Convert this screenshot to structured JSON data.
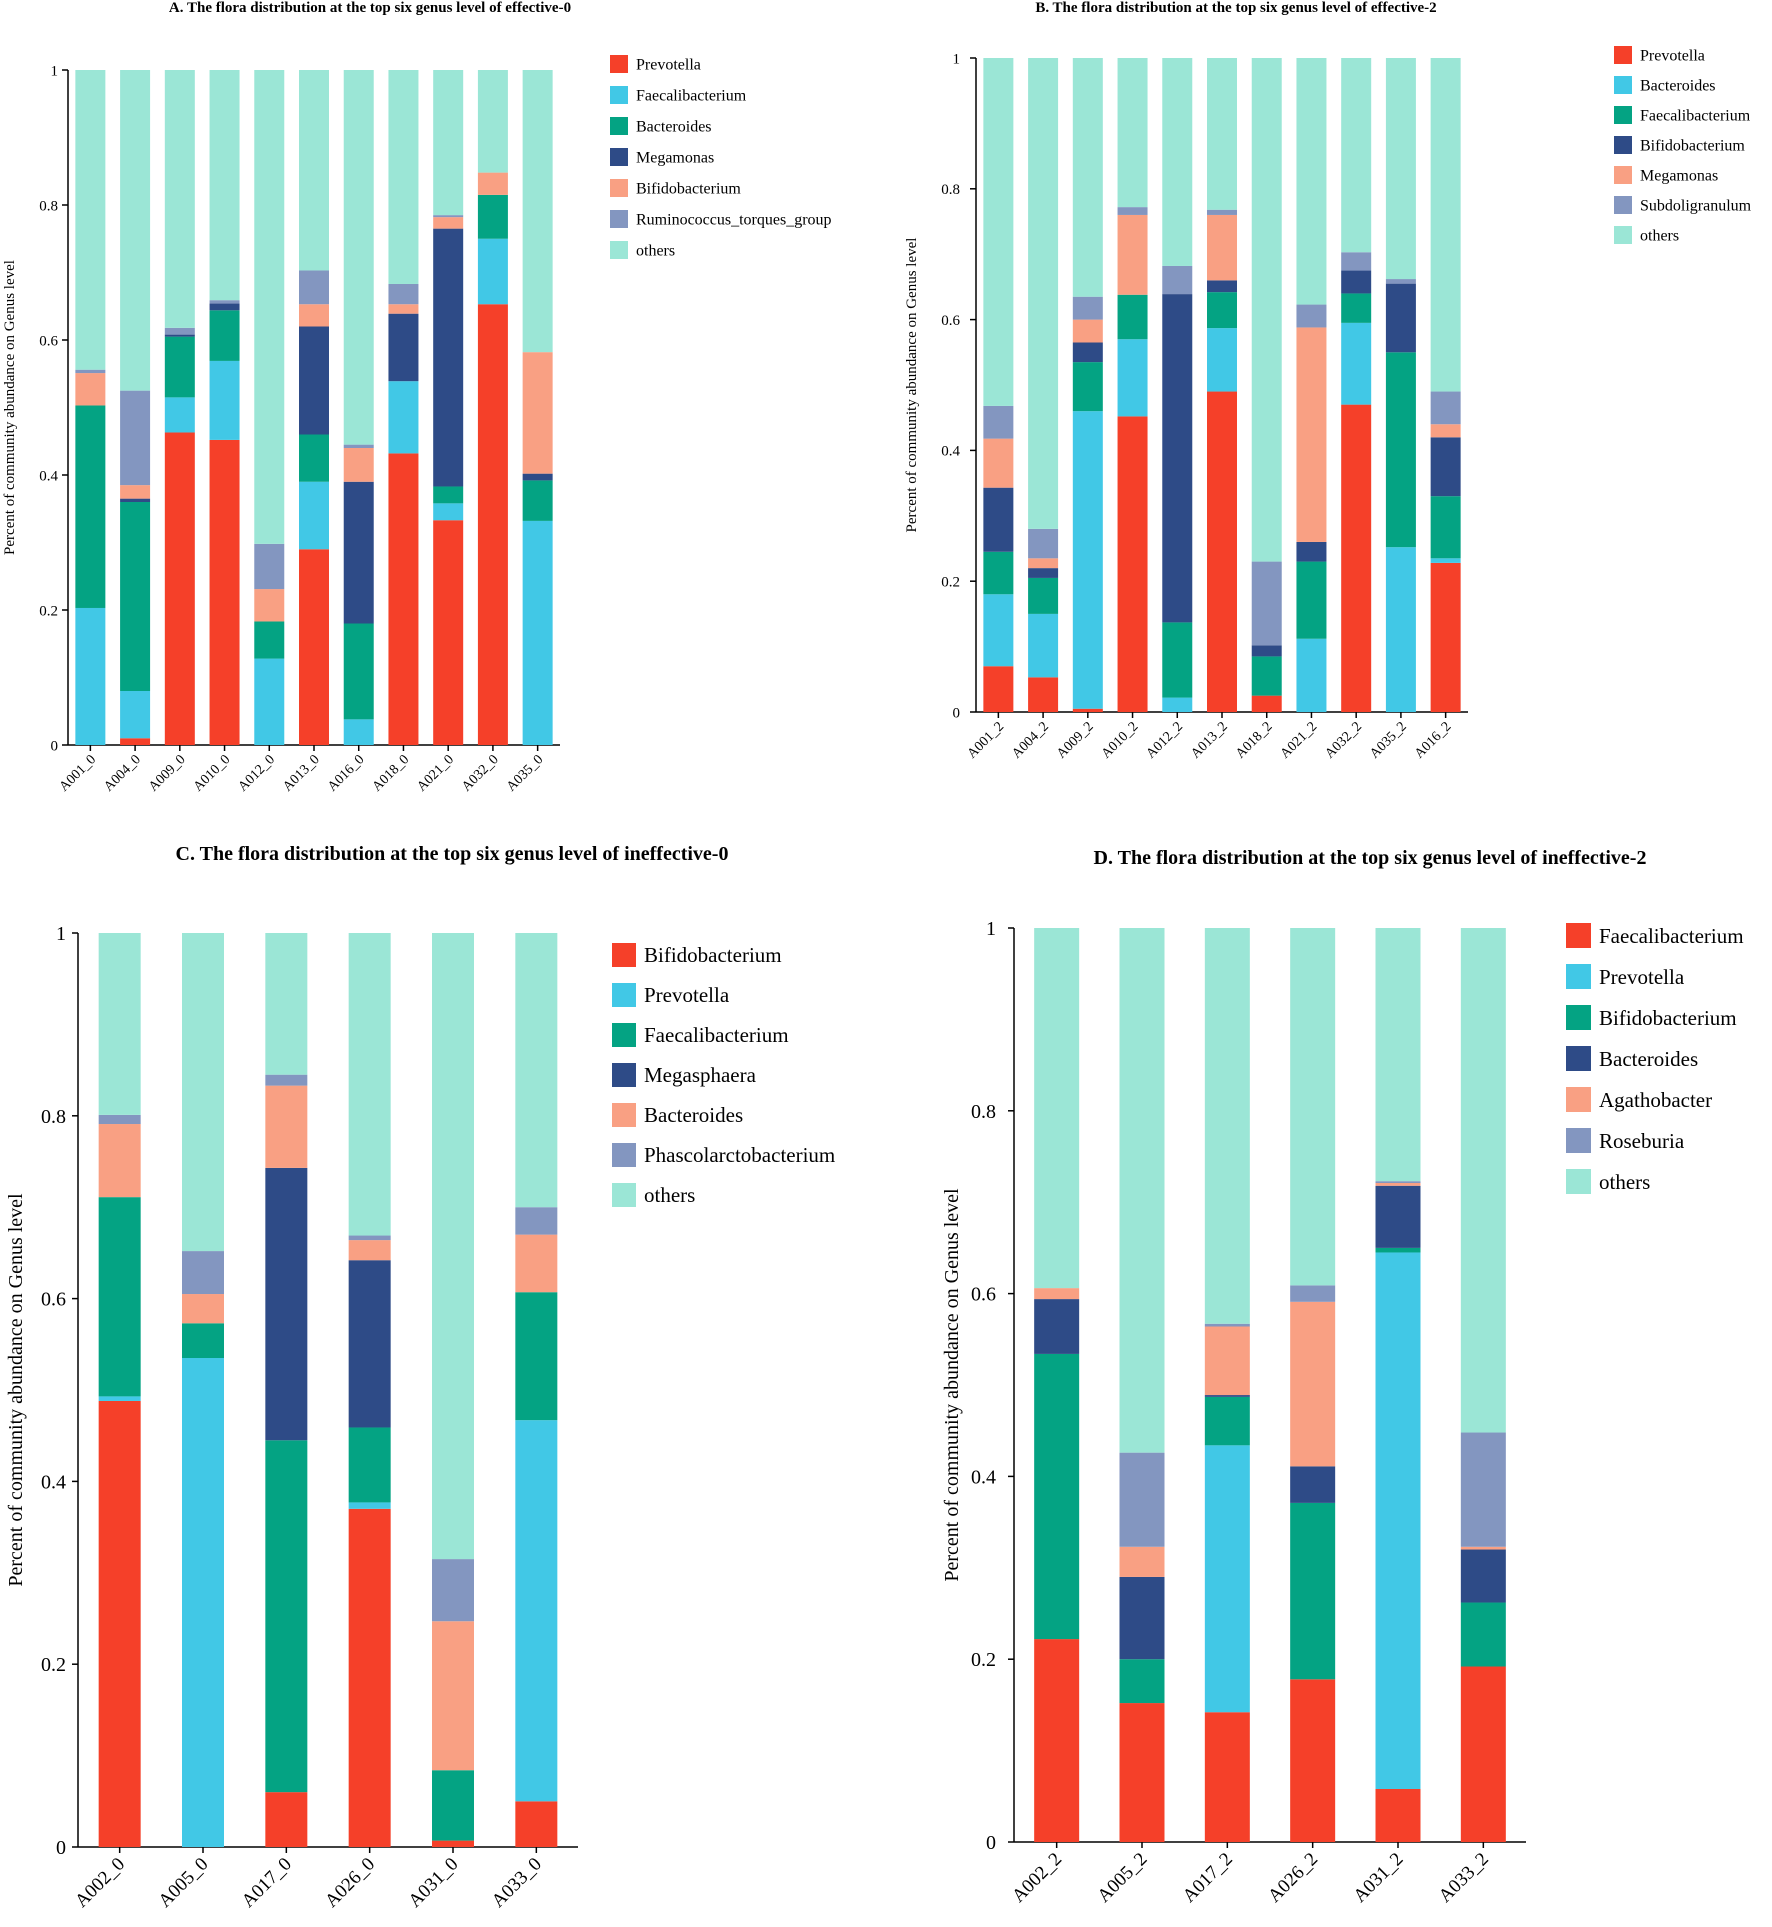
{
  "chart_data": [
    {
      "type": "bar",
      "stacked": true,
      "title": "A. The flora distribution at the top six genus level of effective-0",
      "ylabel": "Percent of community abundance on Genus level",
      "xlabel": "",
      "ylim": [
        0,
        1
      ],
      "yticks": [
        "0",
        "0.2",
        "0.4",
        "0.6",
        "0.8",
        "1"
      ],
      "categories": [
        "A001_0",
        "A004_0",
        "A009_0",
        "A010_0",
        "A012_0",
        "A013_0",
        "A016_0",
        "A018_0",
        "A021_0",
        "A032_0",
        "A035_0"
      ],
      "legend_position": "right",
      "series": [
        {
          "name": "Prevotella",
          "color": "#f54029",
          "values": [
            0,
            0.01,
            0.463,
            0.452,
            0,
            0.29,
            0,
            0.432,
            0.333,
            0.653,
            0
          ]
        },
        {
          "name": "Faecalibacterium",
          "color": "#41c8e6",
          "values": [
            0.203,
            0.07,
            0.052,
            0.117,
            0.128,
            0.1,
            0.038,
            0.107,
            0.025,
            0.097,
            0.332
          ]
        },
        {
          "name": "Bacteroides",
          "color": "#04a383",
          "values": [
            0.3,
            0.28,
            0.09,
            0.075,
            0.055,
            0.07,
            0.142,
            0,
            0.025,
            0.065,
            0.06
          ]
        },
        {
          "name": "Megamonas",
          "color": "#2e4b87",
          "values": [
            0,
            0.005,
            0.003,
            0.01,
            0,
            0.16,
            0.21,
            0.1,
            0.382,
            0,
            0.01
          ]
        },
        {
          "name": "Bifidobacterium",
          "color": "#f9a083",
          "values": [
            0.048,
            0.02,
            0,
            0,
            0.048,
            0.033,
            0.05,
            0.014,
            0.017,
            0.033,
            0.18
          ]
        },
        {
          "name": "Ruminococcus_torques_group",
          "color": "#8396c0",
          "values": [
            0.005,
            0.14,
            0.01,
            0.005,
            0.067,
            0.05,
            0.005,
            0.03,
            0.003,
            0,
            0
          ]
        },
        {
          "name": "others",
          "color": "#9be6d6",
          "values": [
            0.444,
            0.475,
            0.382,
            0.341,
            0.702,
            0.297,
            0.555,
            0.317,
            0.215,
            0.152,
            0.418
          ]
        }
      ]
    },
    {
      "type": "bar",
      "stacked": true,
      "title": "B. The flora distribution at the top six genus level of effective-2",
      "ylabel": "Percent of community abundance on Genus level",
      "xlabel": "",
      "ylim": [
        0,
        1
      ],
      "yticks": [
        "0",
        "0.2",
        "0.4",
        "0.6",
        "0.8",
        "1"
      ],
      "categories": [
        "A001_2",
        "A004_2",
        "A009_2",
        "A010_2",
        "A012_2",
        "A013_2",
        "A018_2",
        "A021_2",
        "A032_2",
        "A035_2",
        "A016_2"
      ],
      "legend_position": "right",
      "series": [
        {
          "name": "Prevotella",
          "color": "#f54029",
          "values": [
            0.07,
            0.053,
            0.005,
            0.452,
            0,
            0.49,
            0.025,
            0,
            0.47,
            0,
            0.228
          ]
        },
        {
          "name": "Bacteroides",
          "color": "#41c8e6",
          "values": [
            0.11,
            0.097,
            0.455,
            0.118,
            0.022,
            0.097,
            0,
            0.112,
            0.125,
            0.252,
            0.007
          ]
        },
        {
          "name": "Faecalibacterium",
          "color": "#04a383",
          "values": [
            0.065,
            0.055,
            0.075,
            0.068,
            0.115,
            0.055,
            0.06,
            0.118,
            0.045,
            0.298,
            0.095
          ]
        },
        {
          "name": "Bifidobacterium",
          "color": "#2e4b87",
          "values": [
            0.098,
            0.015,
            0.03,
            0,
            0.502,
            0.018,
            0.017,
            0.03,
            0.035,
            0.105,
            0.09
          ]
        },
        {
          "name": "Megamonas",
          "color": "#f9a083",
          "values": [
            0.075,
            0.015,
            0.035,
            0.122,
            0,
            0.1,
            0,
            0.328,
            0,
            0,
            0.02
          ]
        },
        {
          "name": "Subdoligranulum",
          "color": "#8396c0",
          "values": [
            0.05,
            0.045,
            0.035,
            0.012,
            0.043,
            0.008,
            0.128,
            0.035,
            0.028,
            0.007,
            0.05
          ]
        },
        {
          "name": "others",
          "color": "#9be6d6",
          "values": [
            0.532,
            0.72,
            0.365,
            0.228,
            0.318,
            0.232,
            0.77,
            0.377,
            0.297,
            0.338,
            0.51
          ]
        }
      ]
    },
    {
      "type": "bar",
      "stacked": true,
      "title": "C. The flora distribution at the top six genus level of ineffective-0",
      "ylabel": "Percent of community abundance on Genus level",
      "xlabel": "",
      "ylim": [
        0,
        1
      ],
      "yticks": [
        "0",
        "0.2",
        "0.4",
        "0.6",
        "0.8",
        "1"
      ],
      "categories": [
        "A002_0",
        "A005_0",
        "A017_0",
        "A026_0",
        "A031_0",
        "A033_0"
      ],
      "legend_position": "right",
      "series": [
        {
          "name": "Bifidobacterium",
          "color": "#f54029",
          "values": [
            0.488,
            0,
            0.06,
            0.37,
            0.007,
            0.05
          ]
        },
        {
          "name": "Prevotella",
          "color": "#41c8e6",
          "values": [
            0.005,
            0.535,
            0,
            0.007,
            0,
            0.417
          ]
        },
        {
          "name": "Faecalibacterium",
          "color": "#04a383",
          "values": [
            0.218,
            0.038,
            0.385,
            0.082,
            0.077,
            0.14
          ]
        },
        {
          "name": "Megasphaera",
          "color": "#2e4b87",
          "values": [
            0,
            0,
            0.298,
            0.183,
            0,
            0
          ]
        },
        {
          "name": "Bacteroides",
          "color": "#f9a083",
          "values": [
            0.08,
            0.032,
            0.09,
            0.022,
            0.163,
            0.063
          ]
        },
        {
          "name": "Phascolarctobacterium",
          "color": "#8396c0",
          "values": [
            0.01,
            0.047,
            0.012,
            0.005,
            0.068,
            0.03
          ]
        },
        {
          "name": "others",
          "color": "#9be6d6",
          "values": [
            0.199,
            0.348,
            0.155,
            0.331,
            0.685,
            0.3
          ]
        }
      ]
    },
    {
      "type": "bar",
      "stacked": true,
      "title": "D. The flora distribution at the top six genus level of ineffective-2",
      "ylabel": "Percent of community abundance on Genus level",
      "xlabel": "",
      "ylim": [
        0,
        1
      ],
      "yticks": [
        "0",
        "0.2",
        "0.4",
        "0.6",
        "0.8",
        "1"
      ],
      "categories": [
        "A002_2",
        "A005_2",
        "A017_2",
        "A026_2",
        "A031_2",
        "A033_2"
      ],
      "legend_position": "right",
      "series": [
        {
          "name": "Faecalibacterium",
          "color": "#f54029",
          "values": [
            0.222,
            0.152,
            0.142,
            0.178,
            0.058,
            0.192
          ]
        },
        {
          "name": "Prevotella",
          "color": "#41c8e6",
          "values": [
            0,
            0,
            0.292,
            0,
            0.587,
            0
          ]
        },
        {
          "name": "Bifidobacterium",
          "color": "#04a383",
          "values": [
            0.312,
            0.048,
            0.053,
            0.193,
            0.005,
            0.07
          ]
        },
        {
          "name": "Bacteroides",
          "color": "#2e4b87",
          "values": [
            0.06,
            0.09,
            0.002,
            0.04,
            0.068,
            0.058
          ]
        },
        {
          "name": "Agathobacter",
          "color": "#f9a083",
          "values": [
            0.012,
            0.033,
            0.075,
            0.18,
            0.003,
            0.003
          ]
        },
        {
          "name": "Roseburia",
          "color": "#8396c0",
          "values": [
            0,
            0.103,
            0.003,
            0.018,
            0.002,
            0.125
          ]
        },
        {
          "name": "others",
          "color": "#9be6d6",
          "values": [
            0.394,
            0.574,
            0.433,
            0.391,
            0.277,
            0.552
          ]
        }
      ]
    }
  ]
}
